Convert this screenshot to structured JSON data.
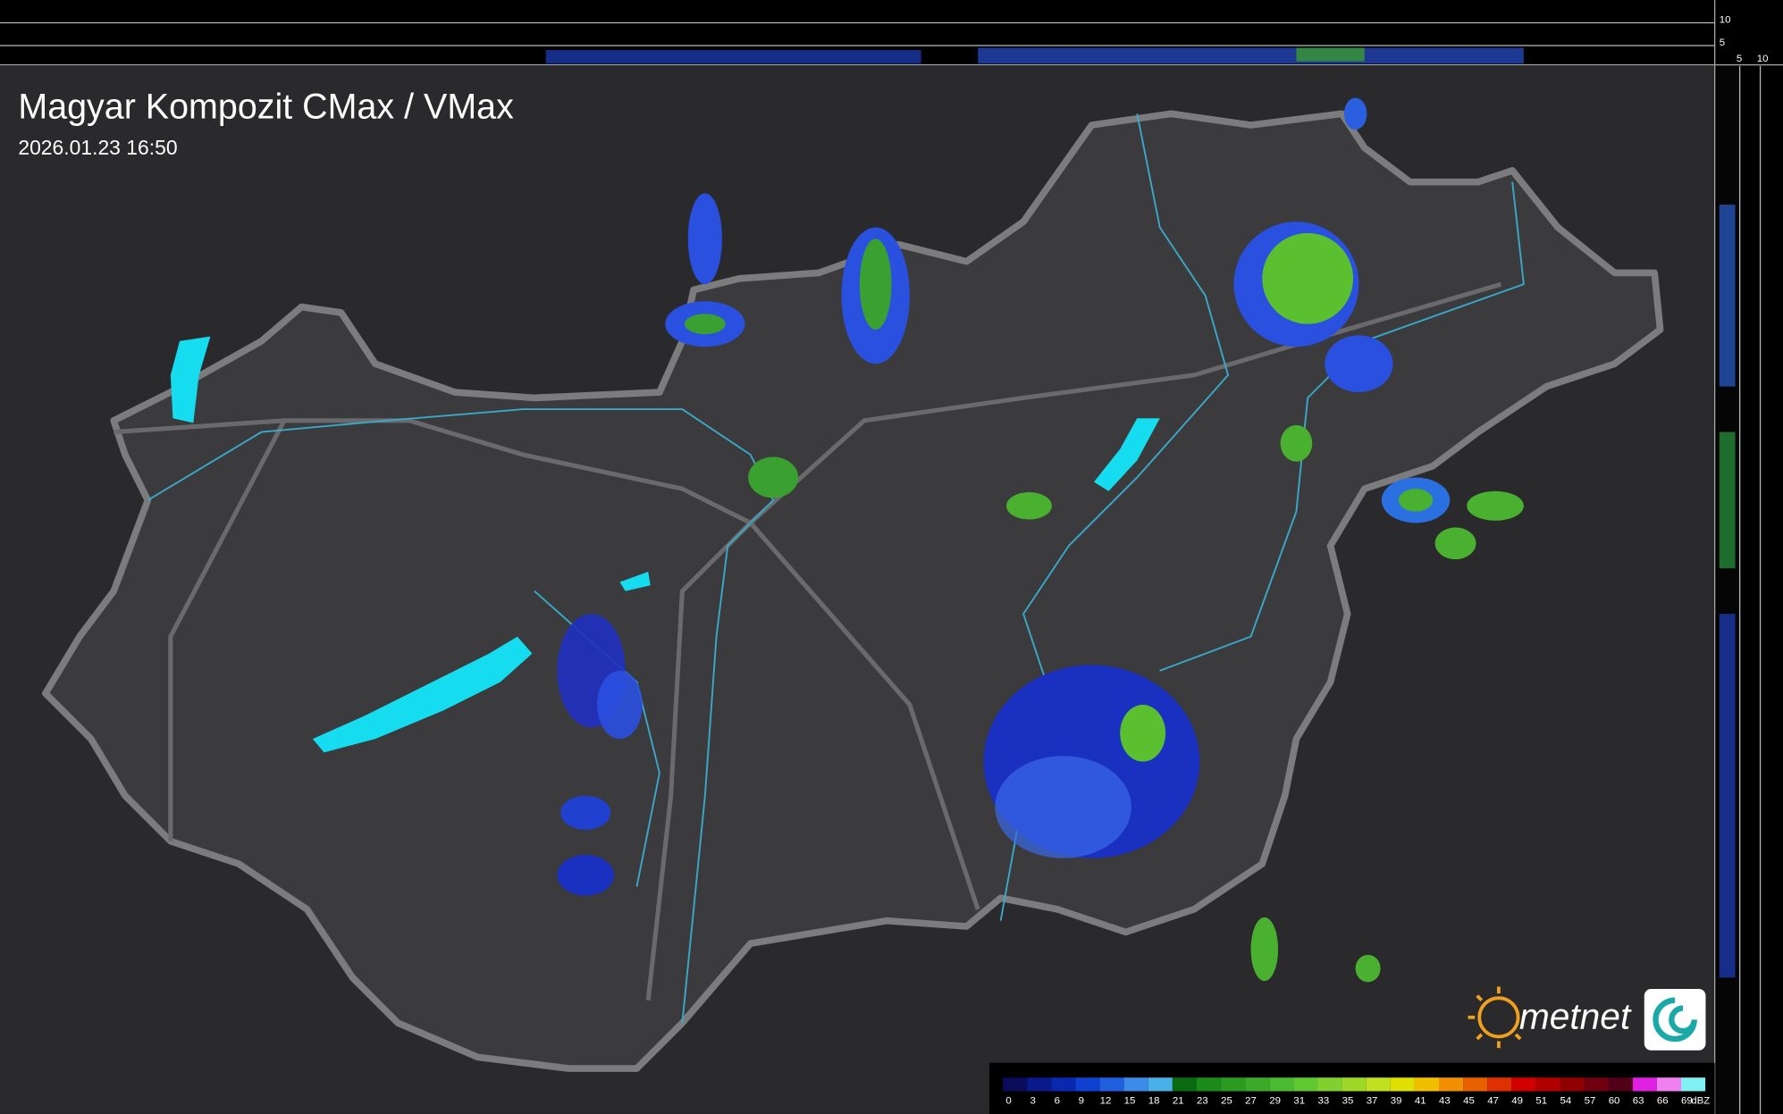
{
  "header": {
    "title": "Magyar Kompozit CMax / VMax",
    "timestamp": "2026.01.23 16:50"
  },
  "top_strip": {
    "ticks": [
      10,
      5
    ]
  },
  "side_strip": {
    "ticks": [
      5,
      10
    ]
  },
  "legend": {
    "levels": [
      0,
      3,
      6,
      9,
      12,
      15,
      18,
      21,
      23,
      25,
      27,
      29,
      31,
      33,
      35,
      37,
      39,
      41,
      43,
      45,
      47,
      49,
      51,
      54,
      57,
      60,
      63,
      66,
      69
    ],
    "colors": [
      "#0b0b5c",
      "#0a1a8a",
      "#0828b0",
      "#1040d0",
      "#2060e0",
      "#3a8ce8",
      "#4ab0e8",
      "#0a6a10",
      "#1a8a18",
      "#2a9a20",
      "#3aaa28",
      "#4aba30",
      "#60c830",
      "#80d030",
      "#a0d828",
      "#c0e020",
      "#e0e000",
      "#f0c000",
      "#f09000",
      "#e86000",
      "#e03000",
      "#d00000",
      "#b00000",
      "#900000",
      "#700010",
      "#500018",
      "#e020e0",
      "#f080f0",
      "#80f0f0"
    ],
    "unit": "dBZ"
  },
  "logo": {
    "text": "metnet"
  }
}
